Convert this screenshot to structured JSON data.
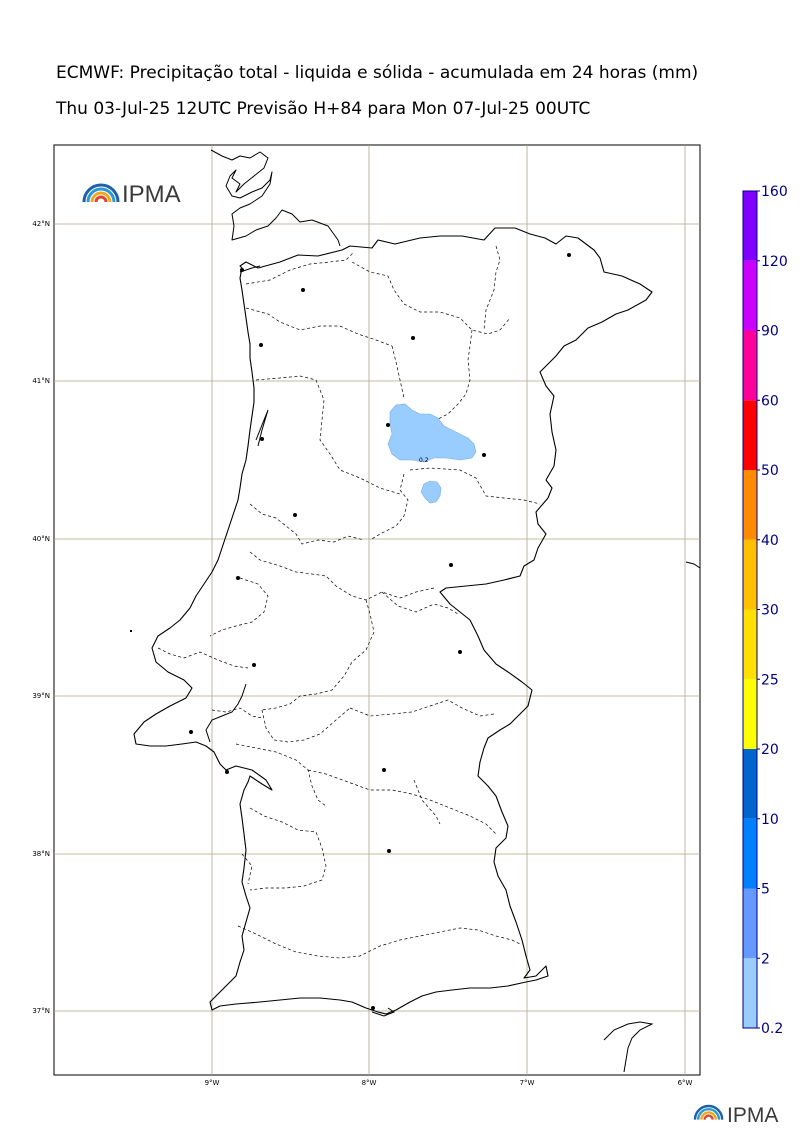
{
  "title_line1": "ECMWF: Precipitação total - liquida e sólida - acumulada em 24 horas (mm)",
  "title_line2": "Thu 03-Jul-25 12UTC Previsão H+84 para Mon 07-Jul-25 00UTC",
  "logo": {
    "text": "IPMA",
    "icon": "ipma-rainbow-icon"
  },
  "map": {
    "lat_labels": [
      "42°N",
      "41°N",
      "40°N",
      "39°N",
      "38°N",
      "37°N"
    ],
    "lon_labels": [
      "9°W",
      "8°W",
      "7°W",
      "6°W"
    ],
    "contour_label": "0.2",
    "precip_color": "#99ccff"
  },
  "colorbar": {
    "levels": [
      "0.2",
      "2",
      "5",
      "10",
      "20",
      "25",
      "30",
      "40",
      "50",
      "60",
      "90",
      "120",
      "160"
    ],
    "colors": [
      "#99ccff",
      "#6699ff",
      "#0080ff",
      "#0066cc",
      "#ffff00",
      "#ffe000",
      "#ffc000",
      "#ff8c00",
      "#ff0000",
      "#ff0099",
      "#cc00ff",
      "#8000ff"
    ]
  }
}
